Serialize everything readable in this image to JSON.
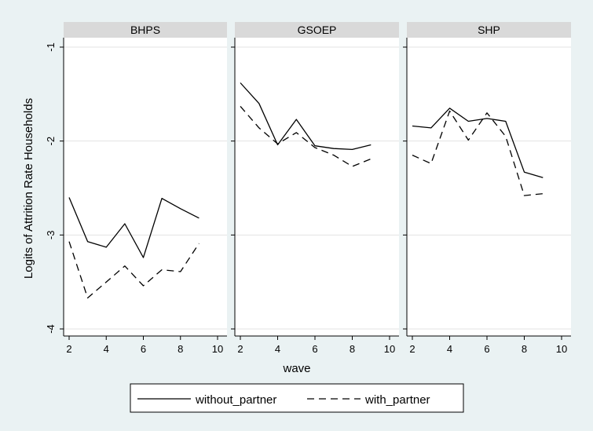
{
  "chart_data": {
    "type": "line",
    "panels": [
      {
        "name": "BHPS",
        "series": [
          {
            "name": "without_partner",
            "x": [
              2,
              3,
              4,
              5,
              6,
              7,
              8,
              9
            ],
            "y": [
              -2.6,
              -3.07,
              -3.13,
              -2.88,
              -3.24,
              -2.61,
              -2.72,
              -2.82
            ]
          },
          {
            "name": "with_partner",
            "x": [
              2,
              3,
              4,
              5,
              6,
              7,
              8,
              9
            ],
            "y": [
              -3.07,
              -3.67,
              -3.5,
              -3.33,
              -3.54,
              -3.37,
              -3.39,
              -3.09
            ]
          }
        ]
      },
      {
        "name": "GSOEP",
        "series": [
          {
            "name": "without_partner",
            "x": [
              2,
              3,
              4,
              5,
              6,
              7,
              8,
              9
            ],
            "y": [
              -1.38,
              -1.6,
              -2.04,
              -1.77,
              -2.05,
              -2.08,
              -2.09,
              -2.04
            ]
          },
          {
            "name": "with_partner",
            "x": [
              2,
              3,
              4,
              5,
              6,
              7,
              8,
              9
            ],
            "y": [
              -1.63,
              -1.86,
              -2.03,
              -1.91,
              -2.07,
              -2.15,
              -2.27,
              -2.19
            ]
          }
        ]
      },
      {
        "name": "SHP",
        "series": [
          {
            "name": "without_partner",
            "x": [
              2,
              3,
              4,
              5,
              6,
              7,
              8,
              9
            ],
            "y": [
              -1.84,
              -1.86,
              -1.65,
              -1.79,
              -1.76,
              -1.79,
              -2.33,
              -2.39
            ]
          },
          {
            "name": "with_partner",
            "x": [
              2,
              3,
              4,
              5,
              6,
              7,
              8,
              9
            ],
            "y": [
              -2.15,
              -2.24,
              -1.68,
              -1.99,
              -1.7,
              -1.95,
              -2.58,
              -2.56
            ]
          }
        ]
      }
    ],
    "xlabel": "wave",
    "ylabel": "Logits of Attrition Rate Households",
    "xlim": [
      2,
      10
    ],
    "ylim": [
      -4,
      -1
    ],
    "xticks": [
      2,
      4,
      6,
      8,
      10
    ],
    "yticks": [
      -1,
      -2,
      -3,
      -4
    ],
    "grid": true,
    "legend": {
      "position": "bottom",
      "entries": [
        {
          "label": "without_partner",
          "style": "solid"
        },
        {
          "label": "with_partner",
          "style": "dashed"
        }
      ]
    },
    "colors": {
      "background": "#eaf2f3",
      "panel": "#ffffff",
      "strip": "#d9d9d9",
      "line": "#000000",
      "grid": "#e3e3e3"
    }
  }
}
